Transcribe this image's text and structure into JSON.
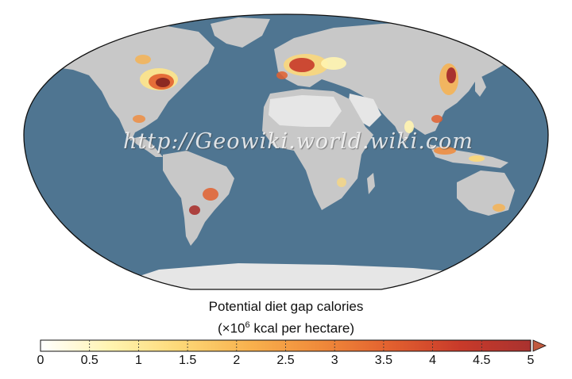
{
  "watermark": {
    "text": "http://Geowiki.world.wiki.com"
  },
  "legend": {
    "title_line1": "Potential diet gap calories",
    "title_line2_prefix": "(×10",
    "title_line2_exponent": "6",
    "title_line2_suffix": " kcal per hectare)",
    "ticks": [
      "0",
      "0.5",
      "1",
      "1.5",
      "2",
      "2.5",
      "3",
      "3.5",
      "4",
      "4.5",
      "5"
    ],
    "range": [
      0,
      5
    ],
    "color_stops": [
      "#ffffff",
      "#fff4b0",
      "#fdd877",
      "#f8b14d",
      "#f08a3a",
      "#e2602f",
      "#c83a2a",
      "#a9322f"
    ],
    "overflow_arrow_color": "#c15a3f"
  },
  "colors": {
    "ocean": "#4f7591",
    "land": "#c8c8c8",
    "arid_land": "#e6e6e6",
    "frame": "#111111"
  }
}
